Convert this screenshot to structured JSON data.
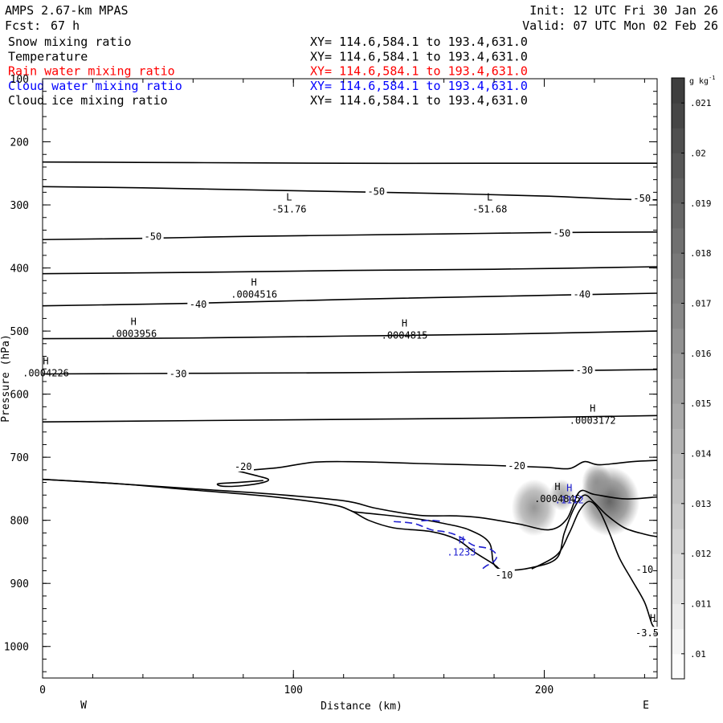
{
  "header": {
    "model": "AMPS 2.67-km MPAS",
    "fcst_label": "Fcst:",
    "fcst_hours": "67 h",
    "init": "Init: 12 UTC Fri 30 Jan 26",
    "valid": "Valid: 07 UTC Mon 02 Feb 26"
  },
  "fields": [
    {
      "label": "Snow mixing ratio",
      "xy": "XY= 114.6,584.1 to 193.4,631.0",
      "color": "#000000"
    },
    {
      "label": "Temperature",
      "xy": "XY= 114.6,584.1 to 193.4,631.0",
      "color": "#000000"
    },
    {
      "label": "Rain water mixing ratio",
      "xy": "XY= 114.6,584.1 to 193.4,631.0",
      "color": "#ff0000"
    },
    {
      "label": "Cloud water mixing ratio",
      "xy": "XY= 114.6,584.1 to 193.4,631.0",
      "color": "#0000ff"
    },
    {
      "label": "Cloud ice mixing ratio",
      "xy": "XY= 114.6,584.1 to 193.4,631.0",
      "color": "#000000"
    }
  ],
  "chart_data": {
    "type": "contour cross-section",
    "xlabel": "Distance (km)",
    "ylabel": "Pressure (hPa)",
    "xlim": [
      0,
      245
    ],
    "ylim": [
      1050,
      100
    ],
    "x_ticks": [
      0,
      100,
      200
    ],
    "y_ticks": [
      100,
      200,
      300,
      400,
      500,
      600,
      700,
      800,
      900,
      1000
    ],
    "west_label": "W",
    "east_label": "E",
    "colorbar": {
      "unit": "g kg",
      "unit_sup": "-1",
      "ticks": [
        ".021",
        ".02",
        ".019",
        ".018",
        ".017",
        ".016",
        ".015",
        ".014",
        ".013",
        ".012",
        ".011",
        ".01"
      ],
      "range": [
        0.0095,
        0.0215
      ]
    },
    "temperature_contours": [
      {
        "points": [
          [
            0,
            232
          ],
          [
            60,
            233
          ],
          [
            120,
            234
          ],
          [
            180,
            234
          ],
          [
            245,
            234
          ]
        ]
      },
      {
        "points": [
          [
            0,
            271
          ],
          [
            40,
            273
          ],
          [
            80,
            276
          ],
          [
            120,
            279
          ],
          [
            160,
            282
          ],
          [
            200,
            286
          ],
          [
            230,
            291
          ],
          [
            245,
            292
          ]
        ]
      },
      {
        "points": [
          [
            0,
            355
          ],
          [
            40,
            353
          ],
          [
            80,
            350
          ],
          [
            120,
            348
          ],
          [
            160,
            346
          ],
          [
            200,
            344
          ],
          [
            245,
            343
          ]
        ]
      },
      {
        "points": [
          [
            0,
            409
          ],
          [
            60,
            407
          ],
          [
            120,
            404
          ],
          [
            180,
            402
          ],
          [
            245,
            398
          ]
        ]
      },
      {
        "points": [
          [
            0,
            460
          ],
          [
            60,
            456
          ],
          [
            120,
            450
          ],
          [
            180,
            445
          ],
          [
            245,
            440
          ]
        ]
      },
      {
        "points": [
          [
            0,
            512
          ],
          [
            60,
            511
          ],
          [
            120,
            508
          ],
          [
            180,
            505
          ],
          [
            245,
            500
          ]
        ]
      },
      {
        "points": [
          [
            0,
            568
          ],
          [
            60,
            567
          ],
          [
            120,
            566
          ],
          [
            180,
            564
          ],
          [
            245,
            561
          ]
        ]
      },
      {
        "points": [
          [
            0,
            644
          ],
          [
            60,
            642
          ],
          [
            120,
            640
          ],
          [
            180,
            638
          ],
          [
            245,
            634
          ]
        ]
      },
      {
        "points": [
          [
            0,
            735
          ],
          [
            30,
            742
          ],
          [
            60,
            750
          ],
          [
            90,
            758
          ],
          [
            120,
            769
          ],
          [
            133,
            781
          ],
          [
            150,
            792
          ],
          [
            165,
            793
          ],
          [
            175,
            796
          ],
          [
            190,
            806
          ],
          [
            202,
            815
          ],
          [
            209,
            798
          ],
          [
            214,
            755
          ],
          [
            220,
            759
          ],
          [
            232,
            766
          ],
          [
            245,
            763
          ]
        ]
      },
      {
        "points": [
          [
            78,
            722
          ],
          [
            90,
            718
          ],
          [
            95,
            716
          ],
          [
            108,
            708
          ],
          [
            122,
            707
          ],
          [
            135,
            708
          ],
          [
            150,
            710
          ],
          [
            180,
            713
          ],
          [
            200,
            716
          ],
          [
            210,
            718
          ],
          [
            216,
            707
          ],
          [
            222,
            712
          ],
          [
            235,
            707
          ],
          [
            245,
            705
          ]
        ]
      },
      {
        "points": [
          [
            78,
            722
          ],
          [
            86,
            730
          ],
          [
            90,
            735
          ],
          [
            88,
            740
          ],
          [
            80,
            745
          ],
          [
            72,
            746
          ],
          [
            70,
            742
          ],
          [
            78,
            740
          ],
          [
            88,
            737
          ]
        ]
      },
      {
        "points": [
          [
            123,
            785
          ],
          [
            125,
            787
          ],
          [
            135,
            791
          ],
          [
            150,
            798
          ],
          [
            160,
            805
          ],
          [
            170,
            815
          ],
          [
            178,
            835
          ],
          [
            180,
            870
          ],
          [
            185,
            879
          ],
          [
            195,
            875
          ],
          [
            205,
            860
          ],
          [
            208,
            820
          ],
          [
            212,
            780
          ],
          [
            216,
            760
          ],
          [
            220,
            772
          ],
          [
            225,
            792
          ],
          [
            232,
            812
          ],
          [
            240,
            822
          ],
          [
            245,
            826
          ]
        ]
      },
      {
        "points": [
          [
            0,
            735
          ],
          [
            30,
            742
          ],
          [
            60,
            752
          ],
          [
            90,
            762
          ],
          [
            115,
            775
          ],
          [
            123,
            785
          ],
          [
            130,
            800
          ],
          [
            140,
            812
          ],
          [
            155,
            818
          ],
          [
            165,
            830
          ],
          [
            172,
            850
          ],
          [
            180,
            870
          ],
          [
            183,
            880
          ],
          [
            186,
            880
          ]
        ]
      },
      {
        "points": [
          [
            195,
            877
          ],
          [
            205,
            855
          ],
          [
            210,
            820
          ],
          [
            214,
            785
          ],
          [
            218,
            770
          ],
          [
            222,
            785
          ],
          [
            226,
            820
          ],
          [
            230,
            860
          ],
          [
            235,
            895
          ],
          [
            240,
            930
          ],
          [
            243,
            965
          ],
          [
            245,
            972
          ]
        ]
      }
    ],
    "temperature_labels": [
      {
        "x": 133,
        "p": 279,
        "text": "-50"
      },
      {
        "x": 239,
        "p": 290,
        "text": "-50"
      },
      {
        "x": 44,
        "p": 350,
        "text": "-50"
      },
      {
        "x": 207,
        "p": 345,
        "text": "-50"
      },
      {
        "x": 62,
        "p": 458,
        "text": "-40"
      },
      {
        "x": 215,
        "p": 442,
        "text": "-40"
      },
      {
        "x": 54,
        "p": 568,
        "text": "-30"
      },
      {
        "x": 216,
        "p": 562,
        "text": "-30"
      },
      {
        "x": 80,
        "p": 715,
        "text": "-20"
      },
      {
        "x": 189,
        "p": 714,
        "text": "-20"
      },
      {
        "x": 184,
        "p": 887,
        "text": "-10"
      },
      {
        "x": 240,
        "p": 878,
        "text": "-10"
      },
      {
        "x": 241,
        "p": 979,
        "text": "-3.5"
      }
    ],
    "extrema_labels": [
      {
        "x": 97,
        "p": 293,
        "letter": "L",
        "value": "-51.76"
      },
      {
        "x": 177,
        "p": 293,
        "letter": "L",
        "value": "-51.68"
      },
      {
        "x": 83,
        "p": 428,
        "letter": "H",
        "value": ".0004516"
      },
      {
        "x": 35,
        "p": 490,
        "letter": "H",
        "value": ".0003956"
      },
      {
        "x": 143,
        "p": 493,
        "letter": "H",
        "value": ".0004815"
      },
      {
        "x": 0,
        "p": 553,
        "letter": "H",
        "value": ".0004226"
      },
      {
        "x": 218,
        "p": 628,
        "letter": "H",
        "value": ".0003172"
      },
      {
        "x": 204,
        "p": 752,
        "letter": "H",
        "value": ".0004845"
      },
      {
        "x": 242,
        "p": 960,
        "letter": "H",
        "value": ""
      }
    ],
    "cloud_water_contour": {
      "points": [
        [
          140,
          802
        ],
        [
          148,
          805
        ],
        [
          155,
          815
        ],
        [
          160,
          818
        ],
        [
          164,
          822
        ],
        [
          168,
          830
        ],
        [
          172,
          840
        ],
        [
          178,
          845
        ],
        [
          181,
          855
        ],
        [
          180,
          865
        ],
        [
          177,
          872
        ],
        [
          175,
          878
        ]
      ]
    },
    "cloud_water_contour_2": {
      "points": [
        [
          151,
          801
        ],
        [
          155,
          800
        ],
        [
          160,
          802
        ]
      ]
    },
    "cloud_water_label": {
      "x": 167,
      "p": 837,
      "letter": "H",
      "value": ".1233"
    },
    "cloud_water_label_2": {
      "x": 210,
      "p": 754,
      "letter": "H",
      "value": ".1112"
    },
    "shading_blobs": [
      {
        "x": 196,
        "p": 780,
        "rx": 9,
        "rp": 45,
        "value": 0.0135
      },
      {
        "x": 207,
        "p": 760,
        "rx": 5,
        "rp": 25,
        "value": 0.0125
      },
      {
        "x": 226,
        "p": 770,
        "rx": 12,
        "rp": 55,
        "value": 0.0175
      },
      {
        "x": 221,
        "p": 740,
        "rx": 6,
        "rp": 30,
        "value": 0.014
      }
    ]
  }
}
